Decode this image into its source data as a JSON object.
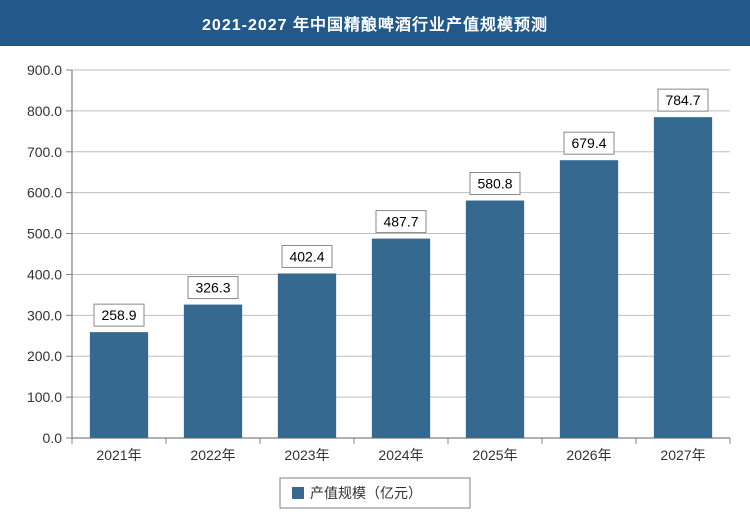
{
  "title": "2021-2027 年中国精酿啤酒行业产值规模预测",
  "chart": {
    "type": "bar",
    "categories": [
      "2021年",
      "2022年",
      "2023年",
      "2024年",
      "2025年",
      "2026年",
      "2027年"
    ],
    "values": [
      258.9,
      326.3,
      402.4,
      487.7,
      580.8,
      679.4,
      784.7
    ],
    "value_labels": [
      "258.9",
      "326.3",
      "402.4",
      "487.7",
      "580.8",
      "679.4",
      "784.7"
    ],
    "bar_color": "#35698f",
    "bar_width_ratio": 0.62,
    "y_min": 0.0,
    "y_max": 900.0,
    "y_tick_step": 100.0,
    "y_ticks": [
      "0.0",
      "100.0",
      "200.0",
      "300.0",
      "400.0",
      "500.0",
      "600.0",
      "700.0",
      "800.0",
      "900.0"
    ],
    "grid_color": "#bfbfbf",
    "axis_color": "#808080",
    "plot_bg": "#ffffff",
    "legend_label": "产值规模（亿元）",
    "legend_marker_color": "#35698f",
    "legend_border_color": "#808080",
    "title_fontsize": 16,
    "tick_fontsize": 14,
    "label_fontsize": 14
  }
}
